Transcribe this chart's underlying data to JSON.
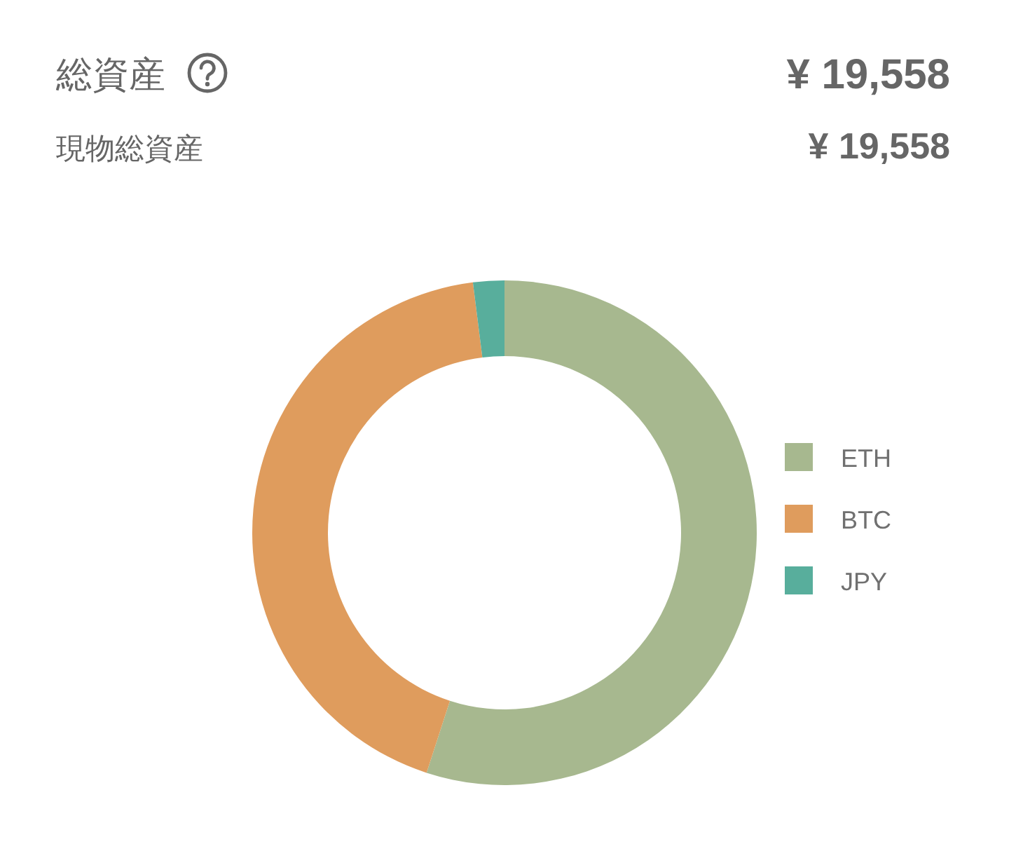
{
  "chart_data": {
    "type": "donut",
    "title": "総資産",
    "subtitle": "現物総資産",
    "annotations": [
      "¥ 19,558",
      "¥ 19,558"
    ],
    "categories": [
      "ETH",
      "BTC",
      "JPY"
    ],
    "values": [
      55,
      43,
      2
    ],
    "colors": [
      "#a7b88f",
      "#df9c5d",
      "#58ae9c"
    ],
    "legend": "right"
  }
}
